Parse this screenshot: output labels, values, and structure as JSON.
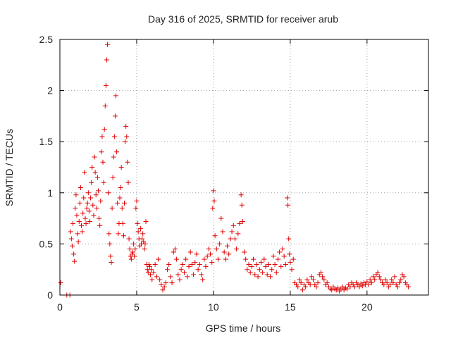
{
  "chart_data": {
    "type": "scatter",
    "title": "Day 316 of 2025, SRMTID for receiver arub",
    "xlabel": "GPS time / hours",
    "ylabel": "SRMTID / TECUs",
    "xlim": [
      0,
      24
    ],
    "ylim": [
      0,
      2.5
    ],
    "xticks": [
      0,
      5,
      10,
      15,
      20
    ],
    "yticks": [
      0,
      0.5,
      1,
      1.5,
      2,
      2.5
    ],
    "xtick_labels": [
      "0",
      "5",
      "10",
      "15",
      "20"
    ],
    "ytick_labels": [
      "0",
      "0.5",
      "1",
      "1.5",
      "2",
      "2.5"
    ],
    "grid": true,
    "marker": "+",
    "color": "#e00000",
    "series": [
      {
        "name": "SRMTID",
        "points": [
          [
            0.05,
            0.12
          ],
          [
            0.45,
            0.0
          ],
          [
            0.65,
            0.0
          ],
          [
            0.7,
            0.62
          ],
          [
            0.75,
            0.55
          ],
          [
            0.8,
            0.48
          ],
          [
            0.85,
            0.7
          ],
          [
            0.9,
            0.4
          ],
          [
            0.95,
            0.33
          ],
          [
            1.0,
            0.85
          ],
          [
            1.05,
            0.98
          ],
          [
            1.1,
            0.78
          ],
          [
            1.15,
            0.6
          ],
          [
            1.2,
            0.52
          ],
          [
            1.25,
            0.72
          ],
          [
            1.3,
            0.9
          ],
          [
            1.35,
            1.05
          ],
          [
            1.4,
            0.68
          ],
          [
            1.45,
            0.62
          ],
          [
            1.5,
            0.8
          ],
          [
            1.55,
            0.95
          ],
          [
            1.6,
            1.2
          ],
          [
            1.65,
            0.75
          ],
          [
            1.7,
            0.7
          ],
          [
            1.75,
            0.85
          ],
          [
            1.8,
            0.9
          ],
          [
            1.85,
            1.0
          ],
          [
            1.9,
            0.82
          ],
          [
            1.95,
            0.72
          ],
          [
            2.0,
            0.95
          ],
          [
            2.05,
            1.1
          ],
          [
            2.1,
            1.25
          ],
          [
            2.15,
            0.88
          ],
          [
            2.2,
            0.78
          ],
          [
            2.25,
            1.35
          ],
          [
            2.3,
            1.2
          ],
          [
            2.35,
            0.98
          ],
          [
            2.4,
            0.85
          ],
          [
            2.45,
            1.15
          ],
          [
            2.5,
            1.02
          ],
          [
            2.55,
            0.75
          ],
          [
            2.6,
            0.68
          ],
          [
            2.65,
            0.92
          ],
          [
            2.7,
            1.4
          ],
          [
            2.75,
            1.55
          ],
          [
            2.8,
            1.3
          ],
          [
            2.85,
            1.1
          ],
          [
            2.9,
            1.62
          ],
          [
            2.95,
            1.85
          ],
          [
            3.0,
            2.05
          ],
          [
            3.05,
            2.3
          ],
          [
            3.1,
            2.45
          ],
          [
            3.15,
            1.0
          ],
          [
            3.2,
            0.6
          ],
          [
            3.25,
            0.5
          ],
          [
            3.3,
            0.38
          ],
          [
            3.35,
            0.32
          ],
          [
            3.4,
            0.85
          ],
          [
            3.45,
            1.15
          ],
          [
            3.5,
            1.35
          ],
          [
            3.55,
            1.55
          ],
          [
            3.6,
            1.75
          ],
          [
            3.65,
            1.95
          ],
          [
            3.7,
            1.4
          ],
          [
            3.75,
            0.9
          ],
          [
            3.8,
            0.6
          ],
          [
            3.85,
            0.7
          ],
          [
            3.9,
            0.95
          ],
          [
            3.95,
            1.05
          ],
          [
            4.0,
            1.25
          ],
          [
            4.05,
            0.85
          ],
          [
            4.1,
            0.7
          ],
          [
            4.15,
            0.58
          ],
          [
            4.2,
            0.9
          ],
          [
            4.25,
            1.5
          ],
          [
            4.3,
            1.65
          ],
          [
            4.35,
            1.55
          ],
          [
            4.4,
            1.3
          ],
          [
            4.45,
            1.1
          ],
          [
            4.5,
            0.55
          ],
          [
            4.55,
            0.45
          ],
          [
            4.6,
            0.38
          ],
          [
            4.65,
            0.35
          ],
          [
            4.7,
            0.4
          ],
          [
            4.75,
            0.42
          ],
          [
            4.8,
            0.5
          ],
          [
            4.85,
            0.38
          ],
          [
            4.9,
            0.45
          ],
          [
            4.95,
            0.85
          ],
          [
            5.0,
            0.92
          ],
          [
            5.05,
            0.7
          ],
          [
            5.1,
            0.62
          ],
          [
            5.15,
            0.55
          ],
          [
            5.2,
            0.48
          ],
          [
            5.25,
            0.65
          ],
          [
            5.3,
            0.5
          ],
          [
            5.35,
            0.55
          ],
          [
            5.4,
            0.6
          ],
          [
            5.45,
            0.52
          ],
          [
            5.5,
            0.45
          ],
          [
            5.55,
            0.5
          ],
          [
            5.6,
            0.72
          ],
          [
            5.65,
            0.3
          ],
          [
            5.7,
            0.25
          ],
          [
            5.75,
            0.22
          ],
          [
            5.8,
            0.3
          ],
          [
            5.85,
            0.28
          ],
          [
            5.9,
            0.2
          ],
          [
            5.95,
            0.25
          ],
          [
            6.0,
            0.15
          ],
          [
            6.1,
            0.22
          ],
          [
            6.2,
            0.3
          ],
          [
            6.3,
            0.18
          ],
          [
            6.4,
            0.35
          ],
          [
            6.5,
            0.15
          ],
          [
            6.6,
            0.1
          ],
          [
            6.7,
            0.05
          ],
          [
            6.8,
            0.08
          ],
          [
            6.9,
            0.12
          ],
          [
            7.0,
            0.25
          ],
          [
            7.1,
            0.3
          ],
          [
            7.2,
            0.18
          ],
          [
            7.3,
            0.12
          ],
          [
            7.4,
            0.42
          ],
          [
            7.5,
            0.45
          ],
          [
            7.6,
            0.35
          ],
          [
            7.7,
            0.2
          ],
          [
            7.8,
            0.15
          ],
          [
            7.9,
            0.25
          ],
          [
            8.0,
            0.3
          ],
          [
            8.1,
            0.22
          ],
          [
            8.2,
            0.35
          ],
          [
            8.3,
            0.18
          ],
          [
            8.4,
            0.28
          ],
          [
            8.5,
            0.42
          ],
          [
            8.6,
            0.3
          ],
          [
            8.7,
            0.2
          ],
          [
            8.8,
            0.32
          ],
          [
            8.9,
            0.4
          ],
          [
            9.0,
            0.25
          ],
          [
            9.1,
            0.3
          ],
          [
            9.2,
            0.2
          ],
          [
            9.3,
            0.15
          ],
          [
            9.4,
            0.35
          ],
          [
            9.5,
            0.28
          ],
          [
            9.6,
            0.38
          ],
          [
            9.7,
            0.45
          ],
          [
            9.8,
            0.4
          ],
          [
            9.9,
            0.32
          ],
          [
            9.95,
            0.85
          ],
          [
            10.0,
            1.02
          ],
          [
            10.05,
            0.92
          ],
          [
            10.1,
            0.58
          ],
          [
            10.2,
            0.45
          ],
          [
            10.3,
            0.35
          ],
          [
            10.4,
            0.5
          ],
          [
            10.5,
            0.75
          ],
          [
            10.6,
            0.62
          ],
          [
            10.7,
            0.42
          ],
          [
            10.8,
            0.35
          ],
          [
            10.9,
            0.48
          ],
          [
            11.0,
            0.4
          ],
          [
            11.1,
            0.55
          ],
          [
            11.2,
            0.62
          ],
          [
            11.3,
            0.68
          ],
          [
            11.4,
            0.55
          ],
          [
            11.5,
            0.45
          ],
          [
            11.6,
            0.6
          ],
          [
            11.7,
            0.7
          ],
          [
            11.8,
            0.98
          ],
          [
            11.85,
            0.88
          ],
          [
            11.9,
            0.72
          ],
          [
            12.0,
            0.42
          ],
          [
            12.1,
            0.35
          ],
          [
            12.2,
            0.25
          ],
          [
            12.3,
            0.3
          ],
          [
            12.4,
            0.22
          ],
          [
            12.5,
            0.28
          ],
          [
            12.6,
            0.35
          ],
          [
            12.7,
            0.2
          ],
          [
            12.8,
            0.3
          ],
          [
            12.9,
            0.18
          ],
          [
            13.0,
            0.25
          ],
          [
            13.1,
            0.32
          ],
          [
            13.2,
            0.22
          ],
          [
            13.3,
            0.35
          ],
          [
            13.4,
            0.28
          ],
          [
            13.5,
            0.2
          ],
          [
            13.6,
            0.3
          ],
          [
            13.7,
            0.18
          ],
          [
            13.8,
            0.25
          ],
          [
            13.9,
            0.38
          ],
          [
            14.0,
            0.3
          ],
          [
            14.1,
            0.22
          ],
          [
            14.2,
            0.35
          ],
          [
            14.3,
            0.42
          ],
          [
            14.4,
            0.28
          ],
          [
            14.5,
            0.45
          ],
          [
            14.6,
            0.38
          ],
          [
            14.7,
            0.3
          ],
          [
            14.8,
            0.95
          ],
          [
            14.85,
            0.88
          ],
          [
            14.9,
            0.55
          ],
          [
            14.95,
            0.4
          ],
          [
            15.0,
            0.32
          ],
          [
            15.1,
            0.25
          ],
          [
            15.2,
            0.35
          ],
          [
            15.3,
            0.12
          ],
          [
            15.4,
            0.1
          ],
          [
            15.5,
            0.08
          ],
          [
            15.6,
            0.15
          ],
          [
            15.7,
            0.12
          ],
          [
            15.8,
            0.05
          ],
          [
            15.9,
            0.1
          ],
          [
            16.0,
            0.08
          ],
          [
            16.1,
            0.15
          ],
          [
            16.2,
            0.12
          ],
          [
            16.3,
            0.1
          ],
          [
            16.4,
            0.18
          ],
          [
            16.5,
            0.15
          ],
          [
            16.6,
            0.1
          ],
          [
            16.7,
            0.08
          ],
          [
            16.8,
            0.12
          ],
          [
            16.9,
            0.2
          ],
          [
            17.0,
            0.22
          ],
          [
            17.1,
            0.18
          ],
          [
            17.2,
            0.15
          ],
          [
            17.3,
            0.1
          ],
          [
            17.4,
            0.12
          ],
          [
            17.5,
            0.08
          ],
          [
            17.6,
            0.06
          ],
          [
            17.7,
            0.05
          ],
          [
            17.8,
            0.08
          ],
          [
            17.9,
            0.06
          ],
          [
            18.0,
            0.05
          ],
          [
            18.1,
            0.07
          ],
          [
            18.2,
            0.04
          ],
          [
            18.3,
            0.06
          ],
          [
            18.4,
            0.08
          ],
          [
            18.5,
            0.05
          ],
          [
            18.6,
            0.07
          ],
          [
            18.7,
            0.06
          ],
          [
            18.8,
            0.1
          ],
          [
            18.9,
            0.08
          ],
          [
            19.0,
            0.12
          ],
          [
            19.1,
            0.1
          ],
          [
            19.2,
            0.08
          ],
          [
            19.3,
            0.12
          ],
          [
            19.4,
            0.1
          ],
          [
            19.5,
            0.08
          ],
          [
            19.6,
            0.11
          ],
          [
            19.7,
            0.09
          ],
          [
            19.8,
            0.12
          ],
          [
            19.9,
            0.1
          ],
          [
            20.0,
            0.13
          ],
          [
            20.1,
            0.1
          ],
          [
            20.2,
            0.15
          ],
          [
            20.3,
            0.12
          ],
          [
            20.4,
            0.18
          ],
          [
            20.5,
            0.15
          ],
          [
            20.6,
            0.2
          ],
          [
            20.7,
            0.22
          ],
          [
            20.8,
            0.18
          ],
          [
            20.9,
            0.15
          ],
          [
            21.0,
            0.12
          ],
          [
            21.1,
            0.1
          ],
          [
            21.2,
            0.15
          ],
          [
            21.3,
            0.12
          ],
          [
            21.4,
            0.08
          ],
          [
            21.5,
            0.1
          ],
          [
            21.6,
            0.15
          ],
          [
            21.7,
            0.12
          ],
          [
            21.8,
            0.18
          ],
          [
            21.9,
            0.1
          ],
          [
            22.0,
            0.08
          ],
          [
            22.1,
            0.12
          ],
          [
            22.2,
            0.15
          ],
          [
            22.3,
            0.2
          ],
          [
            22.4,
            0.18
          ],
          [
            22.5,
            0.12
          ],
          [
            22.6,
            0.1
          ],
          [
            22.7,
            0.08
          ]
        ]
      }
    ]
  }
}
